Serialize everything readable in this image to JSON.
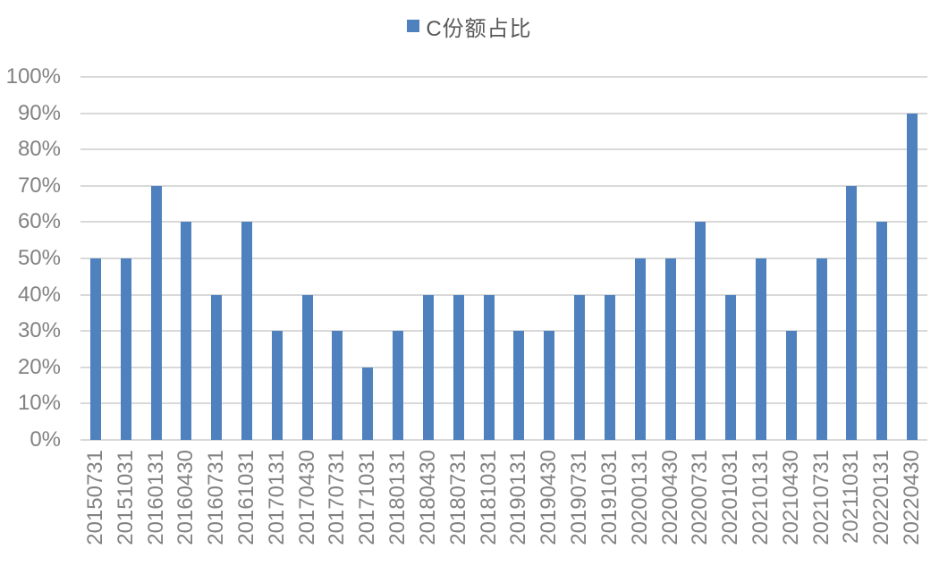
{
  "legend": {
    "label": "C份额占比",
    "swatch_color": "#4e81bd"
  },
  "colors": {
    "bar": "#4e81bd",
    "gridline": "#d9d9d9",
    "axis_label": "#828282",
    "legend_text": "#595959",
    "background": "#ffffff"
  },
  "chart_data": {
    "type": "bar",
    "title": "C份额占比",
    "legend_entries": [
      "C份额占比"
    ],
    "legend_position": "top-center",
    "xlabel": "",
    "ylabel": "",
    "unit": "%",
    "ylim": [
      0,
      100
    ],
    "ytick_step": 10,
    "ytick_labels": [
      "0%",
      "10%",
      "20%",
      "30%",
      "40%",
      "50%",
      "60%",
      "70%",
      "80%",
      "90%",
      "100%"
    ],
    "grid": true,
    "categories": [
      "20150731",
      "20151031",
      "20160131",
      "20160430",
      "20160731",
      "20161031",
      "20170131",
      "20170430",
      "20170731",
      "20171031",
      "20180131",
      "20180430",
      "20180731",
      "20181031",
      "20190131",
      "20190430",
      "20190731",
      "20191031",
      "20200131",
      "20200430",
      "20200731",
      "20201031",
      "20210131",
      "20210430",
      "20210731",
      "20211031",
      "20220131",
      "20220430"
    ],
    "values": [
      50,
      50,
      70,
      60,
      40,
      60,
      30,
      40,
      30,
      20,
      30,
      40,
      40,
      40,
      30,
      30,
      40,
      40,
      50,
      50,
      60,
      40,
      50,
      30,
      50,
      70,
      60,
      90
    ]
  }
}
